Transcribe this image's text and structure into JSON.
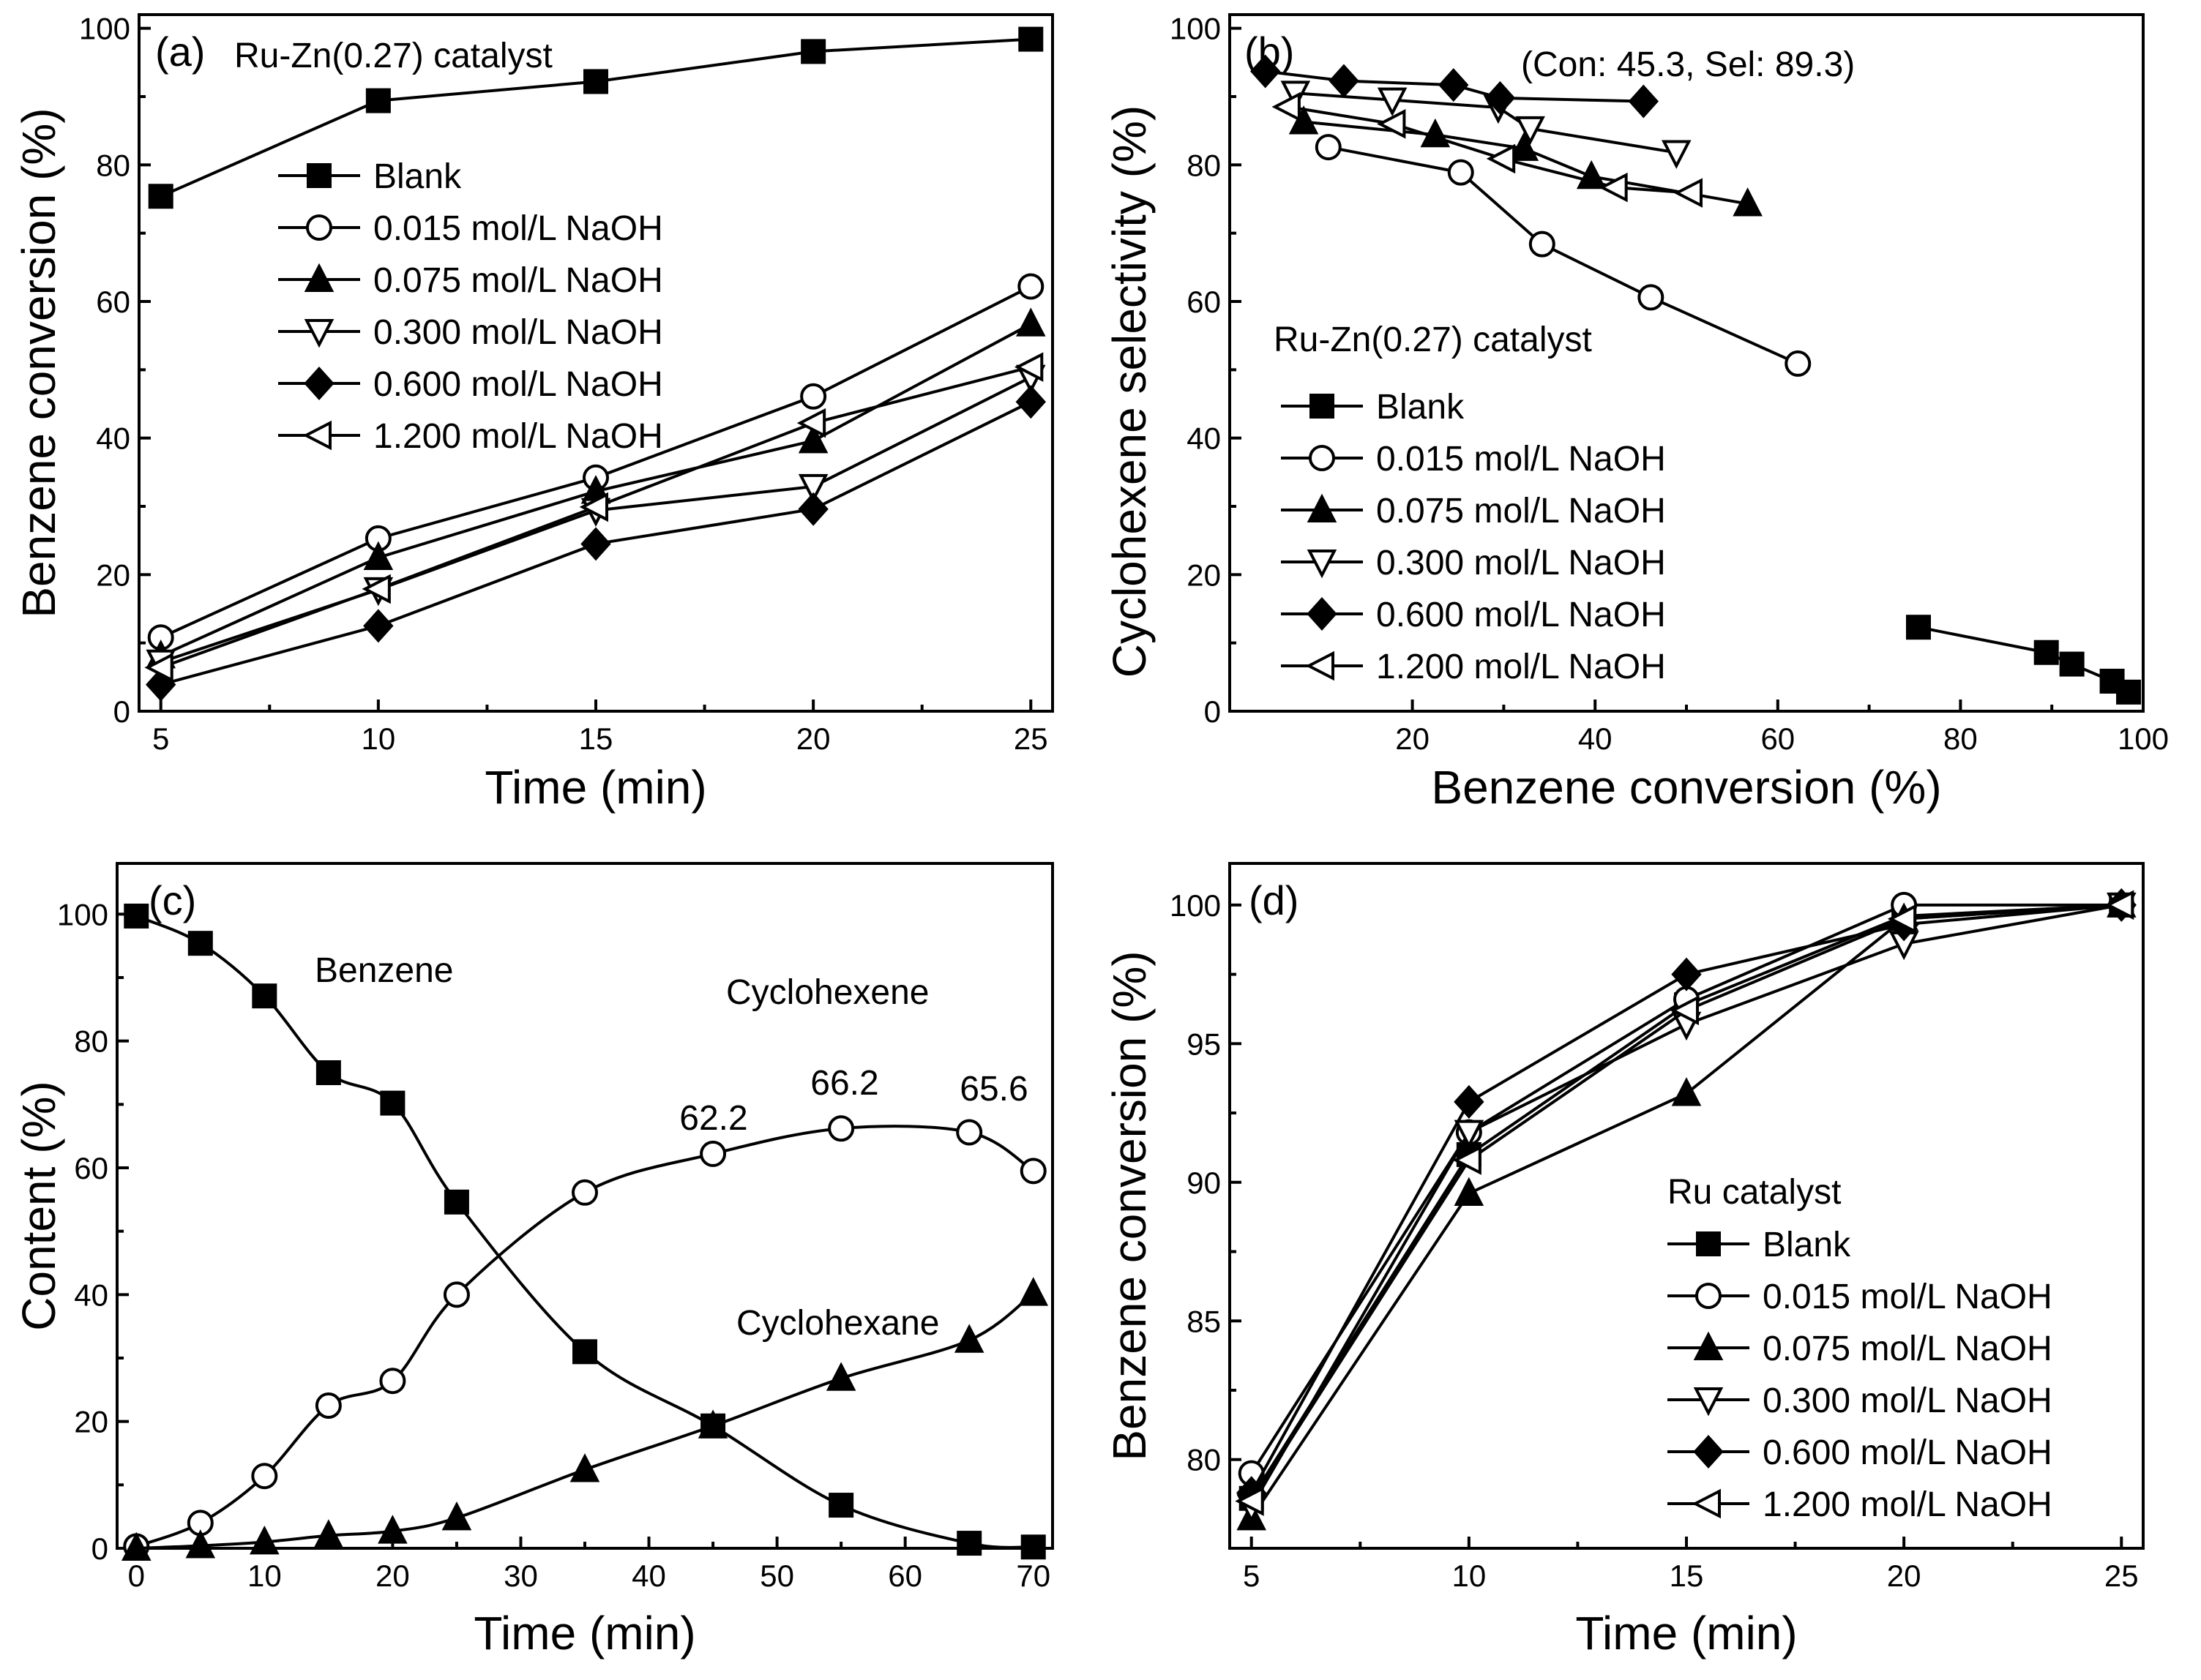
{
  "chart_data": [
    {
      "type": "line",
      "panel_label": "(a)",
      "legend_title": "Ru-Zn(0.27) catalyst",
      "xlabel": "Time (min)",
      "ylabel": "Benzene conversion (%)",
      "xlim": [
        4.5,
        25.5
      ],
      "ylim": [
        0,
        102
      ],
      "x_ticks": [
        5,
        10,
        15,
        20,
        25
      ],
      "y_ticks": [
        0,
        20,
        40,
        60,
        80,
        100
      ],
      "legend_position": "top-left",
      "series": [
        {
          "name": "Blank",
          "marker": "square",
          "x": [
            5,
            10,
            15,
            20,
            25
          ],
          "y": [
            75.4,
            89.4,
            92.2,
            96.6,
            98.4
          ]
        },
        {
          "name": "0.015 mol/L NaOH",
          "marker": "circle",
          "x": [
            5,
            10,
            15,
            20,
            25
          ],
          "y": [
            10.8,
            25.3,
            34.2,
            46.1,
            62.2
          ]
        },
        {
          "name": "0.075 mol/L NaOH",
          "marker": "triangle-up",
          "x": [
            5,
            10,
            15,
            20,
            25
          ],
          "y": [
            8.1,
            22.5,
            32.2,
            39.6,
            56.7
          ]
        },
        {
          "name": "0.300 mol/L NaOH",
          "marker": "triangle-down",
          "x": [
            5,
            10,
            15,
            20,
            25
          ],
          "y": [
            7.2,
            17.8,
            29.4,
            32.9,
            48.9
          ]
        },
        {
          "name": "0.600 mol/L NaOH",
          "marker": "diamond",
          "x": [
            5,
            10,
            15,
            20,
            25
          ],
          "y": [
            3.9,
            12.5,
            24.5,
            29.6,
            45.3
          ]
        },
        {
          "name": "1.200 mol/L NaOH",
          "marker": "triangle-left",
          "x": [
            5,
            10,
            15,
            20,
            25
          ],
          "y": [
            6.4,
            17.9,
            29.9,
            42.2,
            50.4
          ]
        }
      ]
    },
    {
      "type": "scatter",
      "panel_label": "(b)",
      "annotation": "(Con: 45.3, Sel: 89.3)",
      "legend_title": "Ru-Zn(0.27) catalyst",
      "xlabel": "Benzene conversion (%)",
      "ylabel": "Cyclohexene selectivity (%)",
      "xlim": [
        0,
        100
      ],
      "ylim": [
        0,
        102
      ],
      "x_ticks": [
        20,
        40,
        60,
        80,
        100
      ],
      "y_ticks": [
        0,
        20,
        40,
        60,
        80,
        100
      ],
      "legend_position": "bottom-left",
      "series": [
        {
          "name": "Blank",
          "marker": "square",
          "x": [
            75.4,
            89.4,
            92.2,
            96.6,
            98.4
          ],
          "y": [
            12.3,
            8.6,
            6.9,
            4.4,
            2.8
          ]
        },
        {
          "name": "0.015 mol/L NaOH",
          "marker": "circle",
          "x": [
            10.8,
            25.3,
            34.2,
            46.1,
            62.2
          ],
          "y": [
            82.6,
            78.9,
            68.4,
            60.6,
            50.9
          ]
        },
        {
          "name": "0.075 mol/L NaOH",
          "marker": "triangle-up",
          "x": [
            8.1,
            22.5,
            32.2,
            39.6,
            56.7
          ],
          "y": [
            86.3,
            84.4,
            82.4,
            78.3,
            74.3
          ]
        },
        {
          "name": "0.300 mol/L NaOH",
          "marker": "triangle-down",
          "x": [
            7.2,
            17.8,
            29.4,
            32.9,
            48.9
          ],
          "y": [
            90.5,
            89.5,
            88.4,
            85.3,
            81.8
          ]
        },
        {
          "name": "0.600 mol/L NaOH",
          "marker": "diamond",
          "x": [
            3.9,
            12.5,
            24.5,
            29.6,
            45.3
          ],
          "y": [
            93.7,
            92.3,
            91.7,
            89.8,
            89.3
          ]
        },
        {
          "name": "1.200 mol/L NaOH",
          "marker": "triangle-left",
          "x": [
            6.4,
            17.9,
            29.9,
            42.2,
            50.4
          ],
          "y": [
            88.5,
            86.0,
            80.9,
            76.7,
            75.9
          ]
        }
      ]
    },
    {
      "type": "line",
      "panel_label": "(c)",
      "xlabel": "Time (min)",
      "ylabel": "Content (%)",
      "xlim": [
        -1.5,
        71.5
      ],
      "ylim": [
        0,
        108
      ],
      "x_ticks": [
        0,
        10,
        20,
        30,
        40,
        50,
        60,
        70
      ],
      "y_ticks": [
        0,
        20,
        40,
        60,
        80,
        100
      ],
      "series": [
        {
          "name": "Benzene",
          "marker": "square",
          "x": [
            0,
            5,
            10,
            15,
            20,
            25,
            35,
            45,
            55,
            65,
            70
          ],
          "y": [
            99.7,
            95.4,
            87.1,
            75.0,
            70.2,
            54.6,
            31.0,
            19.3,
            6.8,
            0.8,
            0.2
          ]
        },
        {
          "name": "Cyclohexene",
          "marker": "circle",
          "x": [
            0,
            5,
            10,
            15,
            20,
            25,
            35,
            45,
            55,
            65,
            70
          ],
          "y": [
            0.3,
            4.0,
            11.4,
            22.5,
            26.4,
            40.0,
            56.1,
            62.2,
            66.2,
            65.6,
            59.5
          ]
        },
        {
          "name": "Cyclohexane",
          "marker": "triangle-up",
          "x": [
            0,
            5,
            10,
            15,
            20,
            25,
            35,
            45,
            55,
            65,
            70
          ],
          "y": [
            0,
            0.4,
            1.0,
            2.0,
            2.7,
            4.8,
            12.4,
            19.3,
            26.8,
            32.8,
            40.2
          ]
        }
      ],
      "annotations": [
        {
          "text": "Benzene"
        },
        {
          "text": "Cyclohexene"
        },
        {
          "text": "Cyclohexane"
        },
        {
          "text": "62.2"
        },
        {
          "text": "66.2"
        },
        {
          "text": "65.6"
        }
      ]
    },
    {
      "type": "line",
      "panel_label": "(d)",
      "legend_title": "Ru catalyst",
      "xlabel": "Time (min)",
      "ylabel": "Benzene conversion (%)",
      "xlim": [
        4.5,
        25.5
      ],
      "ylim": [
        76.8,
        101.5
      ],
      "x_ticks": [
        5,
        10,
        15,
        20,
        25
      ],
      "y_ticks": [
        80,
        85,
        90,
        95,
        100
      ],
      "legend_position": "bottom-right",
      "series": [
        {
          "name": "Blank",
          "marker": "square",
          "x": [
            5,
            10,
            15,
            20,
            25
          ],
          "y": [
            78.6,
            91.0,
            96.4,
            99.6,
            100
          ]
        },
        {
          "name": "0.015 mol/L NaOH",
          "marker": "circle",
          "x": [
            5,
            10,
            15,
            20,
            25
          ],
          "y": [
            79.5,
            91.8,
            96.6,
            100,
            100
          ]
        },
        {
          "name": "0.075 mol/L NaOH",
          "marker": "triangle-up",
          "x": [
            5,
            10,
            15,
            20,
            25
          ],
          "y": [
            77.9,
            89.6,
            93.2,
            99.5,
            100
          ]
        },
        {
          "name": "0.300 mol/L NaOH",
          "marker": "triangle-down",
          "x": [
            5,
            10,
            15,
            20,
            25
          ],
          "y": [
            78.3,
            91.8,
            95.7,
            98.6,
            100
          ]
        },
        {
          "name": "0.600 mol/L NaOH",
          "marker": "diamond",
          "x": [
            5,
            10,
            15,
            20,
            25
          ],
          "y": [
            78.8,
            92.9,
            97.5,
            99.3,
            100
          ]
        },
        {
          "name": "1.200 mol/L NaOH",
          "marker": "triangle-left",
          "x": [
            5,
            10,
            15,
            20,
            25
          ],
          "y": [
            78.5,
            90.8,
            96.2,
            99.5,
            100
          ]
        }
      ]
    }
  ]
}
